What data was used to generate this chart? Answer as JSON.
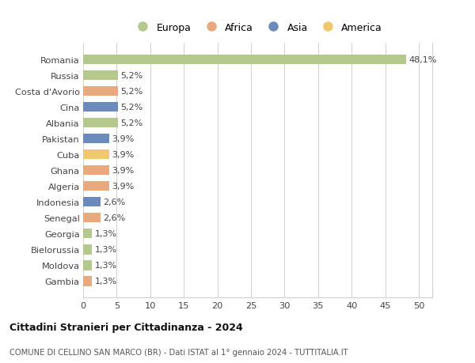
{
  "countries": [
    "Romania",
    "Russia",
    "Costa d'Avorio",
    "Cina",
    "Albania",
    "Pakistan",
    "Cuba",
    "Ghana",
    "Algeria",
    "Indonesia",
    "Senegal",
    "Georgia",
    "Bielorussia",
    "Moldova",
    "Gambia"
  ],
  "values": [
    48.1,
    5.2,
    5.2,
    5.2,
    5.2,
    3.9,
    3.9,
    3.9,
    3.9,
    2.6,
    2.6,
    1.3,
    1.3,
    1.3,
    1.3
  ],
  "labels": [
    "48,1%",
    "5,2%",
    "5,2%",
    "5,2%",
    "5,2%",
    "3,9%",
    "3,9%",
    "3,9%",
    "3,9%",
    "2,6%",
    "2,6%",
    "1,3%",
    "1,3%",
    "1,3%",
    "1,3%"
  ],
  "continents": [
    "Europa",
    "Europa",
    "Africa",
    "Asia",
    "Europa",
    "Asia",
    "America",
    "Africa",
    "Africa",
    "Asia",
    "Africa",
    "Europa",
    "Europa",
    "Europa",
    "Africa"
  ],
  "colors": {
    "Europa": "#b5c98e",
    "Africa": "#e8a97e",
    "Asia": "#6b8cba",
    "America": "#f0c96e"
  },
  "legend_order": [
    "Europa",
    "Africa",
    "Asia",
    "America"
  ],
  "title1": "Cittadini Stranieri per Cittadinanza - 2024",
  "title2": "COMUNE DI CELLINO SAN MARCO (BR) - Dati ISTAT al 1° gennaio 2024 - TUTTITALIA.IT",
  "xlim": [
    0,
    52
  ],
  "xticks": [
    0,
    5,
    10,
    15,
    20,
    25,
    30,
    35,
    40,
    45,
    50
  ],
  "background_color": "#ffffff",
  "grid_color": "#d0d0d0"
}
